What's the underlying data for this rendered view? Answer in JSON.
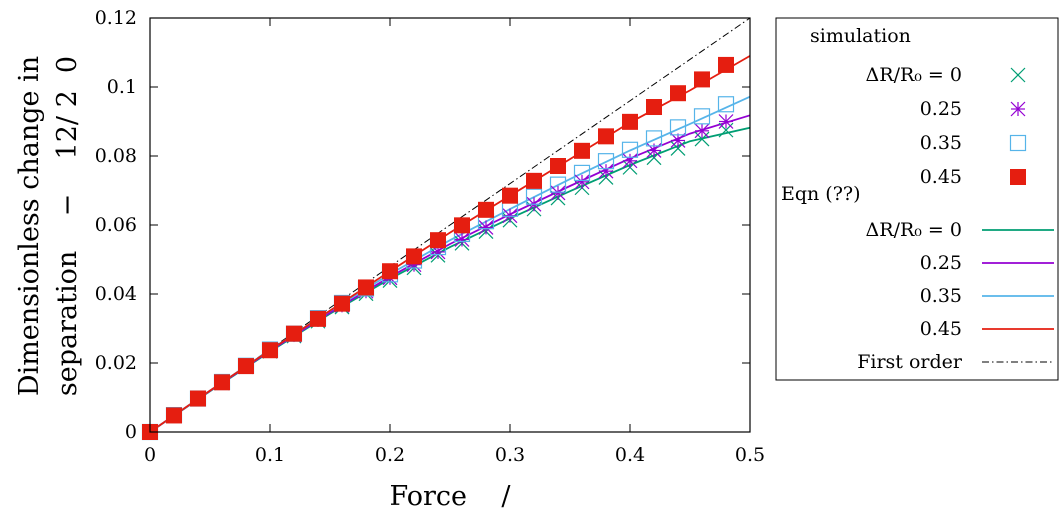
{
  "chart_data": {
    "type": "line",
    "title": "",
    "xlabel": "Force    /",
    "ylabel": [
      "Dimensionless change in",
      "separation    −    12/ 2  0"
    ],
    "xlim": [
      0,
      0.5
    ],
    "ylim": [
      0,
      0.12
    ],
    "x_ticks": [
      0,
      0.1,
      0.2,
      0.3,
      0.4,
      0.5
    ],
    "x_tick_labels": [
      "0",
      "0.1",
      "0.2",
      "0.3",
      "0.4",
      "0.5"
    ],
    "y_ticks": [
      0,
      0.02,
      0.04,
      0.06,
      0.08,
      0.1,
      0.12
    ],
    "y_tick_labels": [
      "0",
      "0.02",
      "0.04",
      "0.06",
      "0.08",
      "0.1",
      "0.12"
    ],
    "grid": false,
    "legend_position": "outside-right",
    "legend_groups": [
      "simulation",
      "Eqn (??)"
    ],
    "simulation_x": [
      0,
      0.02,
      0.04,
      0.06,
      0.08,
      0.1,
      0.12,
      0.14,
      0.16,
      0.18,
      0.2,
      0.22,
      0.24,
      0.26,
      0.28,
      0.3,
      0.32,
      0.34,
      0.36,
      0.38,
      0.4,
      0.42,
      0.44,
      0.46,
      0.48
    ],
    "simulation_series": [
      {
        "name": "ΔR/R₀ = 0",
        "marker": "x",
        "color": "#009e73",
        "values": [
          0,
          0.00485,
          0.0095,
          0.0142,
          0.0189,
          0.0234,
          0.0278,
          0.0321,
          0.0362,
          0.0401,
          0.0439,
          0.0476,
          0.0512,
          0.0547,
          0.0581,
          0.0614,
          0.0646,
          0.0678,
          0.0708,
          0.0738,
          0.0767,
          0.0795,
          0.0822,
          0.0849,
          0.0875
        ]
      },
      {
        "name": "0.25",
        "marker": "star",
        "color": "#9400d3",
        "values": [
          0,
          0.0049,
          0.0096,
          0.0143,
          0.019,
          0.0236,
          0.0281,
          0.0325,
          0.0367,
          0.0408,
          0.0447,
          0.0485,
          0.0522,
          0.0558,
          0.0593,
          0.0627,
          0.066,
          0.0693,
          0.0725,
          0.0756,
          0.0786,
          0.0816,
          0.0845,
          0.0873,
          0.09
        ]
      },
      {
        "name": "0.35",
        "marker": "square-open",
        "color": "#56b4e9",
        "values": [
          0,
          0.0049,
          0.0097,
          0.0145,
          0.0192,
          0.0239,
          0.0285,
          0.033,
          0.0374,
          0.0416,
          0.0457,
          0.0497,
          0.0536,
          0.0574,
          0.0611,
          0.0647,
          0.0682,
          0.0717,
          0.0751,
          0.0785,
          0.0818,
          0.0851,
          0.0883,
          0.0915,
          0.095
        ]
      },
      {
        "name": "0.45",
        "marker": "square-filled",
        "color": "#e51e10",
        "values": [
          0,
          0.0048,
          0.0097,
          0.0144,
          0.0191,
          0.0237,
          0.0285,
          0.0328,
          0.0372,
          0.0419,
          0.0466,
          0.0509,
          0.0556,
          0.0599,
          0.0644,
          0.0685,
          0.0728,
          0.0771,
          0.0815,
          0.0857,
          0.0899,
          0.0942,
          0.0982,
          0.1022,
          0.1064
        ]
      }
    ],
    "eqn_x": [
      0,
      0.05,
      0.1,
      0.15,
      0.2,
      0.25,
      0.3,
      0.35,
      0.4,
      0.45,
      0.5
    ],
    "eqn_series": [
      {
        "name": "ΔR/R₀ = 0",
        "color": "#009e73",
        "values": [
          0,
          0.0118,
          0.0233,
          0.0343,
          0.0444,
          0.0536,
          0.0619,
          0.0698,
          0.0774,
          0.0843,
          0.0882
        ]
      },
      {
        "name": "0.25",
        "color": "#9400d3",
        "values": [
          0,
          0.0119,
          0.0235,
          0.0346,
          0.045,
          0.0545,
          0.0631,
          0.0713,
          0.0793,
          0.0865,
          0.0918
        ]
      },
      {
        "name": "0.35",
        "color": "#56b4e9",
        "values": [
          0,
          0.012,
          0.0238,
          0.0351,
          0.0458,
          0.0556,
          0.0646,
          0.0733,
          0.0816,
          0.0893,
          0.0972
        ]
      },
      {
        "name": "0.45",
        "color": "#e51e10",
        "values": [
          0,
          0.012,
          0.0237,
          0.0352,
          0.0466,
          0.0578,
          0.0685,
          0.0791,
          0.0897,
          0.099,
          0.109
        ]
      }
    ],
    "first_order": {
      "name": "First order",
      "color": "#000000",
      "style": "dash-dot",
      "x": [
        0,
        0.5
      ],
      "values": [
        0,
        0.12
      ]
    }
  }
}
